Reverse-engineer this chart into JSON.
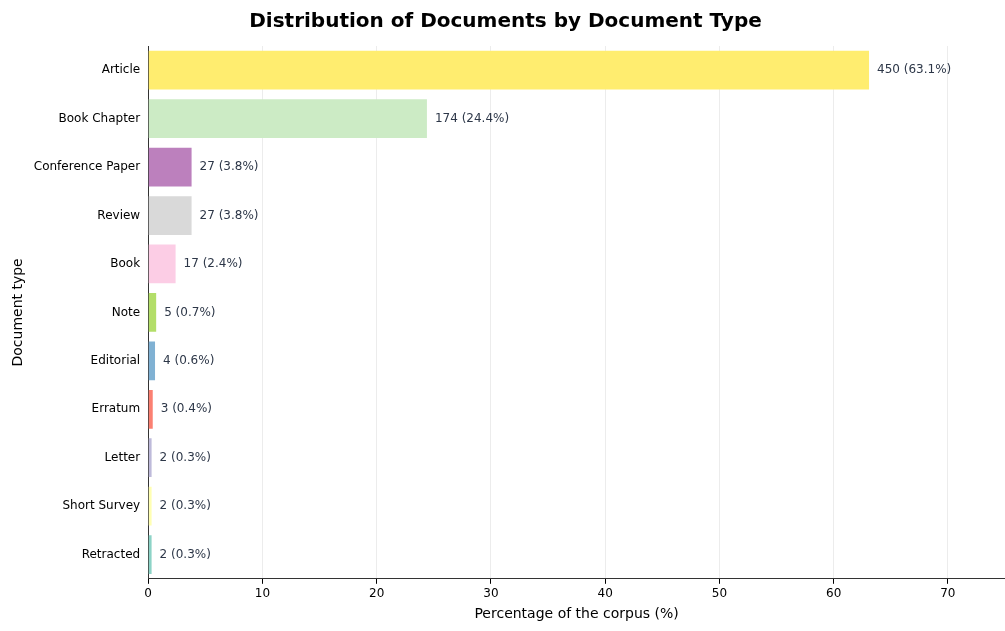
{
  "chart_data": {
    "type": "bar",
    "orientation": "horizontal",
    "title": "Distribution of Documents by Document Type",
    "xlabel": "Percentage of the corpus (%)",
    "ylabel": "Document type",
    "categories": [
      "Article",
      "Book Chapter",
      "Conference Paper",
      "Review",
      "Book",
      "Note",
      "Editorial",
      "Erratum",
      "Letter",
      "Short Survey",
      "Retracted"
    ],
    "values": [
      63.1,
      24.4,
      3.8,
      3.8,
      2.4,
      0.7,
      0.6,
      0.4,
      0.3,
      0.3,
      0.3
    ],
    "colors": [
      "#ffed6f",
      "#ccebc5",
      "#bc80bd",
      "#d9d9d9",
      "#fccde5",
      "#b3de69",
      "#80b1d3",
      "#fb8072",
      "#bebada",
      "#ffffb3",
      "#8dd3c7"
    ],
    "value_labels": [
      "450 (63.1%)",
      "174 (24.4%)",
      "27 (3.8%)",
      "27 (3.8%)",
      "17 (2.4%)",
      "5 (0.7%)",
      "4 (0.6%)",
      "3 (0.4%)",
      "2 (0.3%)",
      "2 (0.3%)",
      "2 (0.3%)"
    ],
    "xlim": [
      0,
      75
    ],
    "xticks": [
      0,
      10,
      20,
      30,
      40,
      50,
      60,
      70
    ],
    "grid": "x"
  }
}
